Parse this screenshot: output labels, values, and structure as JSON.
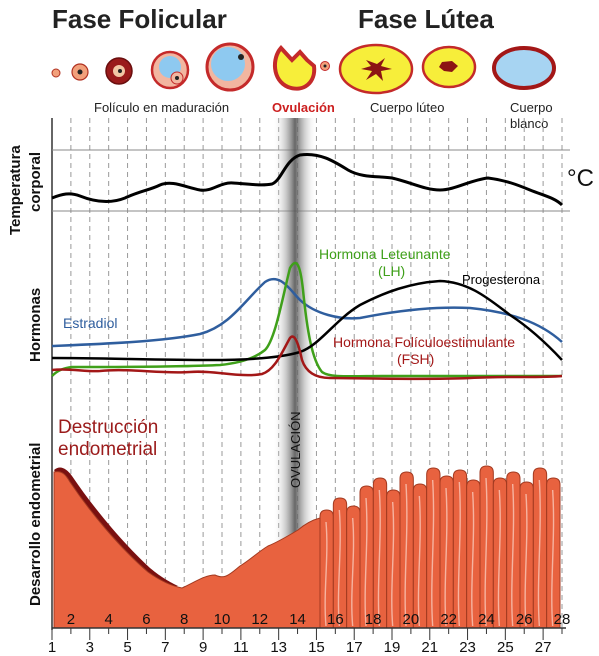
{
  "phases": {
    "follicular": "Fase Folicular",
    "luteal": "Fase Lútea"
  },
  "stage_labels": {
    "maturing": "Folículo en maduración",
    "ovulation": "Ovulación",
    "corpus_luteum": "Cuerpo lúteo",
    "corpus_albicans_line1": "Cuerpo",
    "corpus_albicans_line2": "blanco"
  },
  "row_labels": {
    "temperature_line1": "Temperatura",
    "temperature_line2": "corporal",
    "hormones": "Hormonas",
    "endometrium": "Desarrollo endometrial"
  },
  "temperature_unit": "°C",
  "ovulation_band_label": "OVULACIÓN",
  "hormone_labels": {
    "estradiol": "Estradiol",
    "lh_line1": "Hormona Leteunante",
    "lh_line2": "(LH)",
    "progesterone": "Progesterona",
    "fsh_line1": "Hormona Folículoestimulante",
    "fsh_line2": "(FSH)"
  },
  "endometrial_label_line1": "Destrucción",
  "endometrial_label_line2": "endometrial",
  "days": [
    1,
    2,
    3,
    4,
    5,
    6,
    7,
    8,
    9,
    10,
    11,
    12,
    13,
    14,
    15,
    16,
    17,
    18,
    19,
    20,
    21,
    22,
    23,
    24,
    25,
    26,
    27,
    28
  ],
  "colors": {
    "estradiol": "#2f5e9e",
    "lh": "#3fa01a",
    "progesterone": "#000000",
    "fsh": "#a31717",
    "temperature": "#000000",
    "ovulation_text": "#cc1f1f",
    "endometrium_fill": "#e8623f",
    "endometrium_dark": "#7a1010",
    "destruction_text": "#9b1b1b",
    "follicle_blue": "#8ec9f0",
    "follicle_outer": "#c42a2a",
    "luteum_yellow": "#f7ee3a"
  }
}
